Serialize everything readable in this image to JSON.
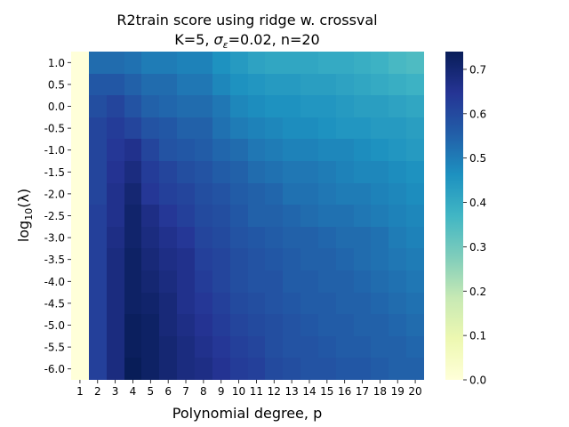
{
  "chart_data": {
    "type": "heatmap",
    "title_line1": "R2train score using ridge w. crossval",
    "title_line2_prefix": "K=5,  ",
    "title_sigma": "σ",
    "title_sigma_sub": "ε",
    "title_line2_suffix": "=0.02,  n=20",
    "xlabel": "Polynomial degree, p",
    "ylabel_prefix": "log",
    "ylabel_sub": "10",
    "ylabel_suffix": "(λ)",
    "x_categories": [
      "1",
      "2",
      "3",
      "4",
      "5",
      "6",
      "7",
      "8",
      "9",
      "10",
      "11",
      "12",
      "13",
      "14",
      "15",
      "16",
      "17",
      "18",
      "19",
      "20"
    ],
    "y_categories": [
      "1.0",
      "0.5",
      "0.0",
      "-0.5",
      "-1.0",
      "-1.5",
      "-2.0",
      "-2.5",
      "-3.0",
      "-3.5",
      "-4.0",
      "-4.5",
      "-5.0",
      "-5.5",
      "-6.0"
    ],
    "colorbar_ticks": [
      "0.0",
      "0.1",
      "0.2",
      "0.3",
      "0.4",
      "0.5",
      "0.6",
      "0.7"
    ],
    "value_range": [
      0.0,
      0.74
    ],
    "colormap": "YlGnBu",
    "values": [
      [
        0.0,
        0.53,
        0.53,
        0.52,
        0.5,
        0.5,
        0.49,
        0.49,
        0.46,
        0.44,
        0.42,
        0.41,
        0.41,
        0.41,
        0.4,
        0.4,
        0.39,
        0.38,
        0.36,
        0.35
      ],
      [
        0.0,
        0.57,
        0.57,
        0.55,
        0.53,
        0.53,
        0.51,
        0.51,
        0.48,
        0.46,
        0.45,
        0.44,
        0.44,
        0.43,
        0.43,
        0.42,
        0.41,
        0.4,
        0.39,
        0.38
      ],
      [
        0.0,
        0.59,
        0.61,
        0.58,
        0.55,
        0.54,
        0.53,
        0.53,
        0.51,
        0.48,
        0.47,
        0.46,
        0.46,
        0.45,
        0.45,
        0.44,
        0.43,
        0.43,
        0.42,
        0.41
      ],
      [
        0.0,
        0.61,
        0.63,
        0.61,
        0.58,
        0.57,
        0.55,
        0.55,
        0.52,
        0.5,
        0.49,
        0.48,
        0.47,
        0.47,
        0.46,
        0.45,
        0.45,
        0.44,
        0.44,
        0.43
      ],
      [
        0.0,
        0.61,
        0.64,
        0.66,
        0.61,
        0.58,
        0.57,
        0.56,
        0.54,
        0.53,
        0.51,
        0.5,
        0.49,
        0.49,
        0.48,
        0.48,
        0.47,
        0.46,
        0.45,
        0.44
      ],
      [
        0.0,
        0.61,
        0.65,
        0.68,
        0.63,
        0.61,
        0.59,
        0.58,
        0.56,
        0.55,
        0.53,
        0.52,
        0.51,
        0.51,
        0.5,
        0.49,
        0.48,
        0.48,
        0.47,
        0.46
      ],
      [
        0.0,
        0.61,
        0.66,
        0.7,
        0.64,
        0.62,
        0.61,
        0.59,
        0.58,
        0.56,
        0.55,
        0.54,
        0.52,
        0.52,
        0.51,
        0.5,
        0.5,
        0.49,
        0.48,
        0.47
      ],
      [
        0.0,
        0.62,
        0.66,
        0.71,
        0.67,
        0.64,
        0.62,
        0.6,
        0.59,
        0.57,
        0.55,
        0.55,
        0.54,
        0.53,
        0.52,
        0.52,
        0.51,
        0.5,
        0.49,
        0.48
      ],
      [
        0.0,
        0.62,
        0.67,
        0.71,
        0.68,
        0.66,
        0.64,
        0.61,
        0.6,
        0.58,
        0.57,
        0.56,
        0.55,
        0.55,
        0.54,
        0.53,
        0.53,
        0.52,
        0.5,
        0.49
      ],
      [
        0.0,
        0.62,
        0.68,
        0.72,
        0.69,
        0.67,
        0.66,
        0.62,
        0.61,
        0.59,
        0.58,
        0.57,
        0.56,
        0.55,
        0.55,
        0.54,
        0.53,
        0.52,
        0.51,
        0.5
      ],
      [
        0.0,
        0.62,
        0.68,
        0.72,
        0.7,
        0.68,
        0.66,
        0.63,
        0.61,
        0.59,
        0.58,
        0.58,
        0.56,
        0.56,
        0.55,
        0.55,
        0.54,
        0.53,
        0.52,
        0.51
      ],
      [
        0.0,
        0.62,
        0.68,
        0.72,
        0.71,
        0.69,
        0.66,
        0.64,
        0.62,
        0.6,
        0.59,
        0.58,
        0.57,
        0.56,
        0.56,
        0.55,
        0.55,
        0.54,
        0.53,
        0.52
      ],
      [
        0.0,
        0.62,
        0.68,
        0.73,
        0.72,
        0.69,
        0.67,
        0.65,
        0.63,
        0.61,
        0.6,
        0.59,
        0.58,
        0.57,
        0.56,
        0.56,
        0.55,
        0.55,
        0.54,
        0.53
      ],
      [
        0.0,
        0.62,
        0.68,
        0.73,
        0.72,
        0.7,
        0.68,
        0.66,
        0.64,
        0.62,
        0.61,
        0.59,
        0.58,
        0.58,
        0.57,
        0.56,
        0.56,
        0.55,
        0.55,
        0.54
      ],
      [
        0.0,
        0.62,
        0.68,
        0.74,
        0.72,
        0.7,
        0.68,
        0.67,
        0.65,
        0.63,
        0.62,
        0.6,
        0.59,
        0.58,
        0.58,
        0.57,
        0.57,
        0.56,
        0.55,
        0.55
      ]
    ]
  }
}
